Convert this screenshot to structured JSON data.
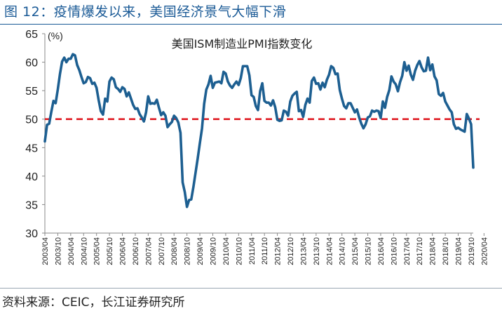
{
  "figure": {
    "title": "图 12：疫情爆发以来，美国经济景气大幅下滑",
    "source": "资料来源：CEIC，长江证券研究所"
  },
  "chart_data": {
    "type": "line",
    "title": "美国ISM制造业PMI指数变化",
    "ylabel": "(%)",
    "xlabel": "",
    "ylim": [
      30,
      65
    ],
    "yticks": [
      30,
      35,
      40,
      45,
      50,
      55,
      60,
      65
    ],
    "grid": false,
    "reference_line": {
      "value": 50,
      "color": "#e01f26",
      "style": "dashed"
    },
    "x_start": "2003/04",
    "x_end": "2020/04",
    "xtick_labels": [
      "2003/04",
      "2003/10",
      "2004/04",
      "2004/10",
      "2005/04",
      "2005/10",
      "2006/04",
      "2006/10",
      "2007/04",
      "2007/10",
      "2008/04",
      "2008/10",
      "2009/04",
      "2009/10",
      "2010/04",
      "2010/10",
      "2011/04",
      "2011/10",
      "2012/04",
      "2012/10",
      "2013/04",
      "2013/10",
      "2014/04",
      "2014/10",
      "2015/04",
      "2015/10",
      "2016/04",
      "2016/10",
      "2017/04",
      "2017/10",
      "2018/04",
      "2018/10",
      "2019/04",
      "2019/10",
      "2020/04"
    ],
    "series": [
      {
        "name": "美国ISM制造业PMI",
        "color": "#1d5f91",
        "values": [
          46.1,
          49.0,
          49.2,
          51.3,
          53.2,
          52.8,
          55.2,
          57.9,
          60.1,
          60.8,
          60.0,
          60.6,
          60.6,
          61.4,
          61.2,
          59.5,
          58.6,
          57.4,
          56.3,
          56.5,
          57.4,
          57.2,
          56.2,
          56.4,
          55.5,
          53.3,
          51.4,
          50.8,
          53.6,
          53.1,
          56.6,
          57.3,
          57.0,
          55.6,
          55.3,
          54.8,
          55.6,
          55.3,
          54.0,
          54.7,
          53.6,
          52.5,
          51.8,
          51.9,
          50.9,
          50.3,
          49.6,
          51.2,
          54.0,
          52.7,
          52.8,
          52.7,
          53.4,
          52.0,
          50.7,
          51.2,
          50.6,
          48.6,
          49.1,
          49.5,
          50.6,
          50.2,
          49.4,
          47.6,
          38.9,
          37.2,
          34.6,
          35.8,
          35.9,
          38.1,
          40.6,
          43.1,
          45.8,
          48.4,
          52.7,
          55.2,
          56.1,
          57.6,
          55.5,
          56.4,
          56.5,
          56.6,
          56.3,
          58.3,
          58.0,
          56.6,
          55.9,
          55.5,
          56.1,
          56.6,
          56.0,
          57.2,
          59.3,
          59.3,
          59.3,
          57.7,
          54.2,
          53.9,
          52.3,
          51.6,
          54.9,
          56.3,
          53.2,
          52.9,
          52.9,
          52.4,
          53.3,
          52.1,
          49.9,
          49.7,
          49.8,
          51.5,
          51.3,
          50.6,
          53.1,
          54.1,
          54.5,
          54.8,
          51.4,
          51.6,
          50.4,
          52.5,
          53.6,
          52.9,
          56.7,
          57.3,
          56.2,
          56.3,
          55.2,
          56.4,
          55.6,
          56.9,
          57.8,
          59.3,
          59.0,
          57.9,
          58.0,
          55.1,
          53.6,
          52.3,
          51.9,
          52.8,
          52.8,
          52.0,
          51.2,
          51.7,
          50.3,
          49.2,
          48.4,
          49.1,
          50.3,
          50.5,
          51.5,
          51.3,
          51.5,
          51.4,
          50.2,
          53.1,
          52.0,
          53.9,
          55.1,
          57.5,
          56.6,
          56.1,
          54.9,
          56.5,
          57.6,
          60.0,
          58.5,
          59.4,
          57.8,
          56.9,
          58.5,
          59.5,
          60.2,
          59.1,
          58.4,
          58.5,
          60.8,
          58.6,
          59.6,
          57.5,
          56.8,
          54.4,
          54.1,
          54.6,
          53.1,
          52.4,
          51.7,
          51.2,
          49.1,
          48.3,
          48.5,
          48.2,
          48.0,
          47.8,
          50.9,
          50.1,
          49.1,
          41.5
        ]
      }
    ]
  }
}
